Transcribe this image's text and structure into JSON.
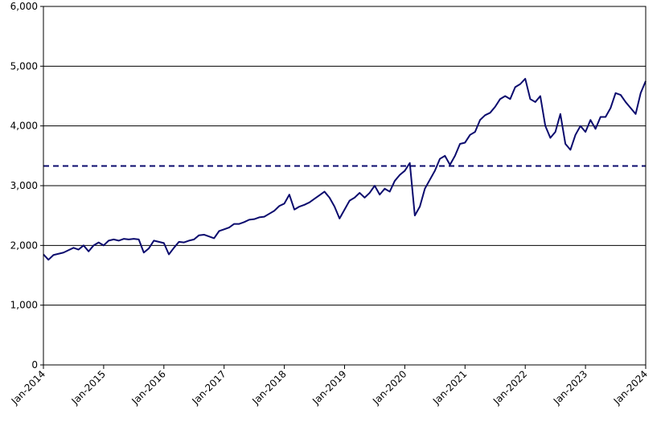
{
  "colors": {
    "series": "#0b0b6e",
    "grid": "#000000",
    "frame": "#000000",
    "background": "#ffffff"
  },
  "chart_data": {
    "type": "line",
    "title": "",
    "xlabel": "",
    "ylabel": "",
    "xlim": [
      "Jan-2014",
      "Jan-2024"
    ],
    "ylim": [
      0,
      6000
    ],
    "grid": "horizontal",
    "legend": "none",
    "y_ticks": [
      "0",
      "1,000",
      "2,000",
      "3,000",
      "4,000",
      "5,000",
      "6,000"
    ],
    "y_tick_values": [
      0,
      1000,
      2000,
      3000,
      4000,
      5000,
      6000
    ],
    "x_ticks": [
      "Jan-2014",
      "Jan-2015",
      "Jan-2016",
      "Jan-2017",
      "Jan-2018",
      "Jan-2019",
      "Jan-2020",
      "Jan-2021",
      "Jan-2022",
      "Jan-2023",
      "Jan-2024"
    ],
    "x_tick_values": [
      "2014-01",
      "2015-01",
      "2016-01",
      "2017-01",
      "2018-01",
      "2019-01",
      "2020-01",
      "2021-01",
      "2022-01",
      "2023-01",
      "2024-01"
    ],
    "reference_line": {
      "style": "dashed",
      "value": 3330
    },
    "series": [
      {
        "points": [
          [
            "2014-01",
            1850
          ],
          [
            "2014-02",
            1760
          ],
          [
            "2014-03",
            1840
          ],
          [
            "2014-04",
            1860
          ],
          [
            "2014-05",
            1880
          ],
          [
            "2014-06",
            1920
          ],
          [
            "2014-07",
            1960
          ],
          [
            "2014-08",
            1930
          ],
          [
            "2014-09",
            2000
          ],
          [
            "2014-10",
            1900
          ],
          [
            "2014-11",
            2000
          ],
          [
            "2014-12",
            2050
          ],
          [
            "2015-01",
            2000
          ],
          [
            "2015-02",
            2080
          ],
          [
            "2015-03",
            2100
          ],
          [
            "2015-04",
            2080
          ],
          [
            "2015-05",
            2110
          ],
          [
            "2015-06",
            2100
          ],
          [
            "2015-07",
            2110
          ],
          [
            "2015-08",
            2100
          ],
          [
            "2015-09",
            1880
          ],
          [
            "2015-10",
            1950
          ],
          [
            "2015-11",
            2080
          ],
          [
            "2015-12",
            2060
          ],
          [
            "2016-01",
            2040
          ],
          [
            "2016-02",
            1850
          ],
          [
            "2016-03",
            1960
          ],
          [
            "2016-04",
            2060
          ],
          [
            "2016-05",
            2050
          ],
          [
            "2016-06",
            2080
          ],
          [
            "2016-07",
            2100
          ],
          [
            "2016-08",
            2170
          ],
          [
            "2016-09",
            2180
          ],
          [
            "2016-10",
            2150
          ],
          [
            "2016-11",
            2120
          ],
          [
            "2016-12",
            2240
          ],
          [
            "2017-01",
            2270
          ],
          [
            "2017-02",
            2300
          ],
          [
            "2017-03",
            2360
          ],
          [
            "2017-04",
            2360
          ],
          [
            "2017-05",
            2390
          ],
          [
            "2017-06",
            2430
          ],
          [
            "2017-07",
            2440
          ],
          [
            "2017-08",
            2470
          ],
          [
            "2017-09",
            2480
          ],
          [
            "2017-10",
            2530
          ],
          [
            "2017-11",
            2580
          ],
          [
            "2017-12",
            2660
          ],
          [
            "2018-01",
            2700
          ],
          [
            "2018-02",
            2850
          ],
          [
            "2018-03",
            2600
          ],
          [
            "2018-04",
            2650
          ],
          [
            "2018-05",
            2680
          ],
          [
            "2018-06",
            2720
          ],
          [
            "2018-07",
            2780
          ],
          [
            "2018-08",
            2840
          ],
          [
            "2018-09",
            2900
          ],
          [
            "2018-10",
            2800
          ],
          [
            "2018-11",
            2650
          ],
          [
            "2018-12",
            2450
          ],
          [
            "2019-01",
            2600
          ],
          [
            "2019-02",
            2750
          ],
          [
            "2019-03",
            2800
          ],
          [
            "2019-04",
            2880
          ],
          [
            "2019-05",
            2800
          ],
          [
            "2019-06",
            2880
          ],
          [
            "2019-07",
            3000
          ],
          [
            "2019-08",
            2850
          ],
          [
            "2019-09",
            2950
          ],
          [
            "2019-10",
            2900
          ],
          [
            "2019-11",
            3080
          ],
          [
            "2019-12",
            3180
          ],
          [
            "2020-01",
            3250
          ],
          [
            "2020-02",
            3380
          ],
          [
            "2020-03",
            2500
          ],
          [
            "2020-04",
            2650
          ],
          [
            "2020-05",
            2950
          ],
          [
            "2020-06",
            3100
          ],
          [
            "2020-07",
            3250
          ],
          [
            "2020-08",
            3450
          ],
          [
            "2020-09",
            3500
          ],
          [
            "2020-10",
            3350
          ],
          [
            "2020-11",
            3500
          ],
          [
            "2020-12",
            3700
          ],
          [
            "2021-01",
            3720
          ],
          [
            "2021-02",
            3850
          ],
          [
            "2021-03",
            3900
          ],
          [
            "2021-04",
            4100
          ],
          [
            "2021-05",
            4180
          ],
          [
            "2021-06",
            4220
          ],
          [
            "2021-07",
            4320
          ],
          [
            "2021-08",
            4450
          ],
          [
            "2021-09",
            4500
          ],
          [
            "2021-10",
            4450
          ],
          [
            "2021-11",
            4650
          ],
          [
            "2021-12",
            4700
          ],
          [
            "2022-01",
            4790
          ],
          [
            "2022-02",
            4450
          ],
          [
            "2022-03",
            4400
          ],
          [
            "2022-04",
            4500
          ],
          [
            "2022-05",
            4000
          ],
          [
            "2022-06",
            3800
          ],
          [
            "2022-07",
            3900
          ],
          [
            "2022-08",
            4200
          ],
          [
            "2022-09",
            3700
          ],
          [
            "2022-10",
            3600
          ],
          [
            "2022-11",
            3850
          ],
          [
            "2022-12",
            4000
          ],
          [
            "2023-01",
            3900
          ],
          [
            "2023-02",
            4100
          ],
          [
            "2023-03",
            3950
          ],
          [
            "2023-04",
            4150
          ],
          [
            "2023-05",
            4150
          ],
          [
            "2023-06",
            4300
          ],
          [
            "2023-07",
            4550
          ],
          [
            "2023-08",
            4520
          ],
          [
            "2023-09",
            4400
          ],
          [
            "2023-10",
            4300
          ],
          [
            "2023-11",
            4200
          ],
          [
            "2023-12",
            4550
          ],
          [
            "2024-01",
            4750
          ]
        ]
      }
    ]
  }
}
